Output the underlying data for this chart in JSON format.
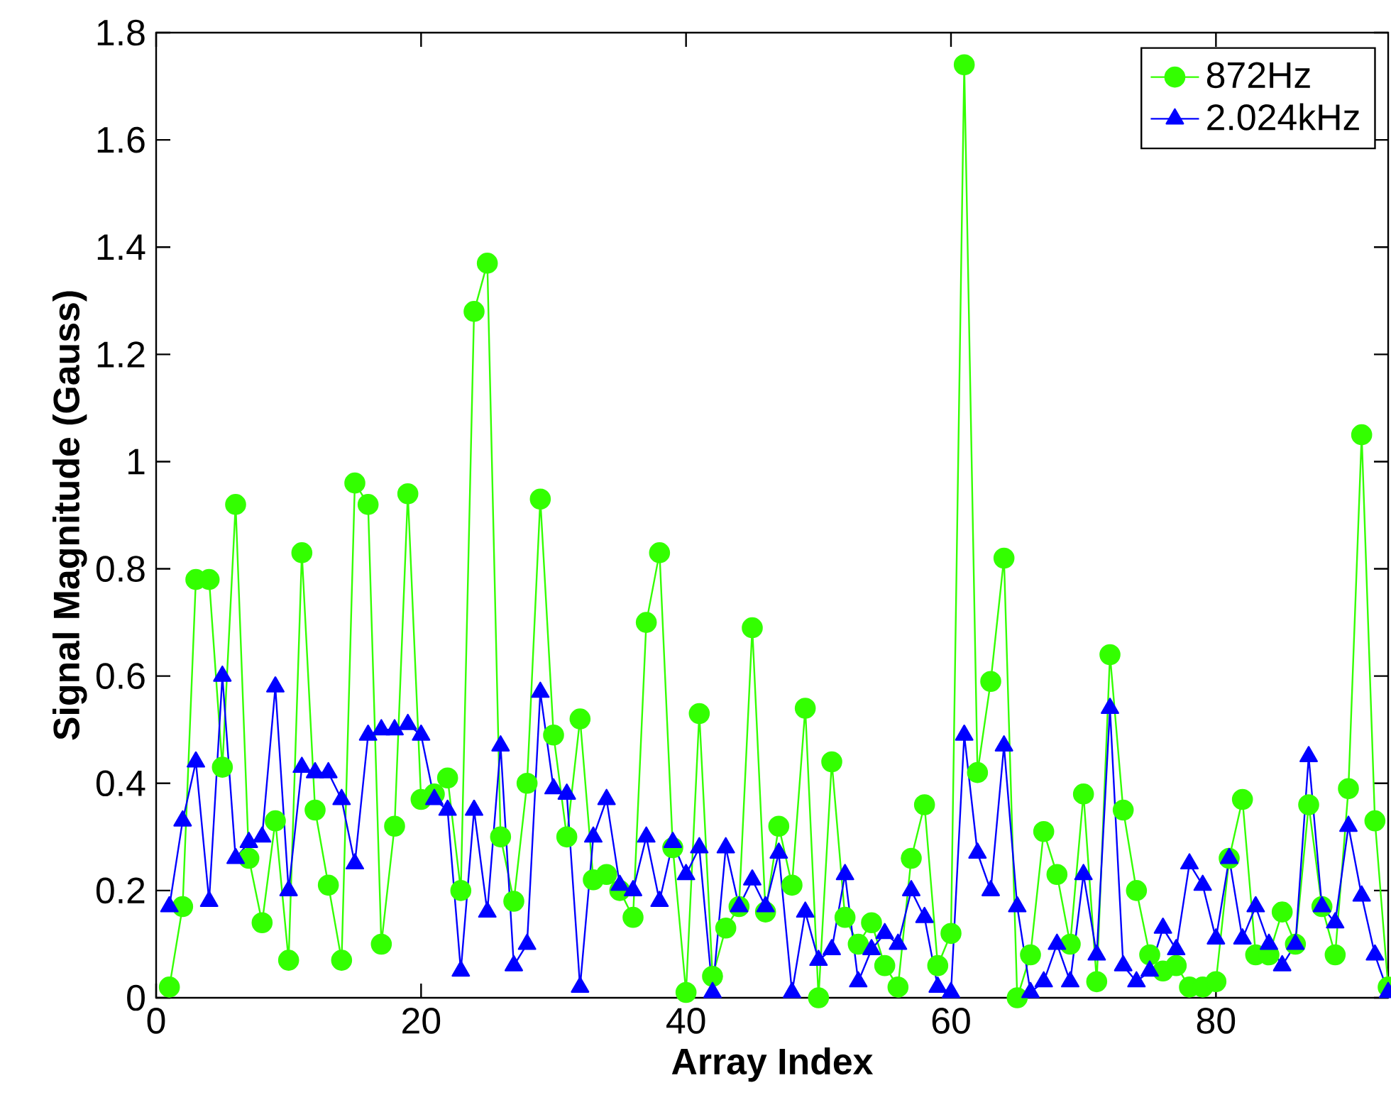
{
  "chart_data": {
    "type": "line",
    "xlabel": "Array Index",
    "ylabel": "Signal Magnitude (Gauss)",
    "x": [
      1,
      2,
      3,
      4,
      5,
      6,
      7,
      8,
      9,
      10,
      11,
      12,
      13,
      14,
      15,
      16,
      17,
      18,
      19,
      20,
      21,
      22,
      23,
      24,
      25,
      26,
      27,
      28,
      29,
      30,
      31,
      32,
      33,
      34,
      35,
      36,
      37,
      38,
      39,
      40,
      41,
      42,
      43,
      44,
      45,
      46,
      47,
      48,
      49,
      50,
      51,
      52,
      53,
      54,
      55,
      56,
      57,
      58,
      59,
      60,
      61,
      62,
      63,
      64,
      65,
      66,
      67,
      68,
      69,
      70,
      71,
      72,
      73,
      74,
      75,
      76,
      77,
      78,
      79,
      80,
      81,
      82,
      83,
      84,
      85,
      86,
      87,
      88,
      89,
      90,
      91,
      92,
      93
    ],
    "series": [
      {
        "name": "872Hz",
        "color": "#33ff00",
        "marker": "circle",
        "values": [
          0.02,
          0.17,
          0.78,
          0.78,
          0.43,
          0.92,
          0.26,
          0.14,
          0.33,
          0.07,
          0.83,
          0.35,
          0.21,
          0.07,
          0.96,
          0.92,
          0.1,
          0.32,
          0.94,
          0.37,
          0.38,
          0.41,
          0.2,
          1.28,
          1.37,
          0.3,
          0.18,
          0.4,
          0.93,
          0.49,
          0.3,
          0.52,
          0.22,
          0.23,
          0.2,
          0.15,
          0.7,
          0.83,
          0.28,
          0.01,
          0.53,
          0.04,
          0.13,
          0.17,
          0.69,
          0.16,
          0.32,
          0.21,
          0.54,
          0.0,
          0.44,
          0.15,
          0.1,
          0.14,
          0.06,
          0.02,
          0.26,
          0.36,
          0.06,
          0.12,
          1.74,
          0.42,
          0.59,
          0.82,
          0.0,
          0.08,
          0.31,
          0.23,
          0.1,
          0.38,
          0.03,
          0.64,
          0.35,
          0.2,
          0.08,
          0.05,
          0.06,
          0.02,
          0.02,
          0.03,
          0.26,
          0.37,
          0.08,
          0.08,
          0.16,
          0.1,
          0.36,
          0.17,
          0.08,
          0.39,
          1.05,
          0.33,
          0.02
        ]
      },
      {
        "name": "2.024kHz",
        "color": "#0000ff",
        "marker": "triangle",
        "values": [
          0.17,
          0.33,
          0.44,
          0.18,
          0.6,
          0.26,
          0.29,
          0.3,
          0.58,
          0.2,
          0.43,
          0.42,
          0.42,
          0.37,
          0.25,
          0.49,
          0.5,
          0.5,
          0.51,
          0.49,
          0.37,
          0.35,
          0.05,
          0.35,
          0.16,
          0.47,
          0.06,
          0.1,
          0.57,
          0.39,
          0.38,
          0.02,
          0.3,
          0.37,
          0.21,
          0.2,
          0.3,
          0.18,
          0.29,
          0.23,
          0.28,
          0.01,
          0.28,
          0.17,
          0.22,
          0.17,
          0.27,
          0.01,
          0.16,
          0.07,
          0.09,
          0.23,
          0.03,
          0.09,
          0.12,
          0.1,
          0.2,
          0.15,
          0.02,
          0.01,
          0.49,
          0.27,
          0.2,
          0.47,
          0.17,
          0.01,
          0.03,
          0.1,
          0.03,
          0.23,
          0.08,
          0.54,
          0.06,
          0.03,
          0.05,
          0.13,
          0.09,
          0.25,
          0.21,
          0.11,
          0.26,
          0.11,
          0.17,
          0.1,
          0.06,
          0.1,
          0.45,
          0.17,
          0.14,
          0.32,
          0.19,
          0.08,
          0.01
        ]
      }
    ],
    "xlim": [
      0,
      93
    ],
    "ylim": [
      0,
      1.8
    ],
    "xticks": [
      0,
      20,
      40,
      60,
      80
    ],
    "yticks": [
      0,
      0.2,
      0.4,
      0.6,
      0.8,
      1,
      1.2,
      1.4,
      1.6,
      1.8
    ],
    "grid": false,
    "legend": "top right",
    "line_style": "solid"
  }
}
